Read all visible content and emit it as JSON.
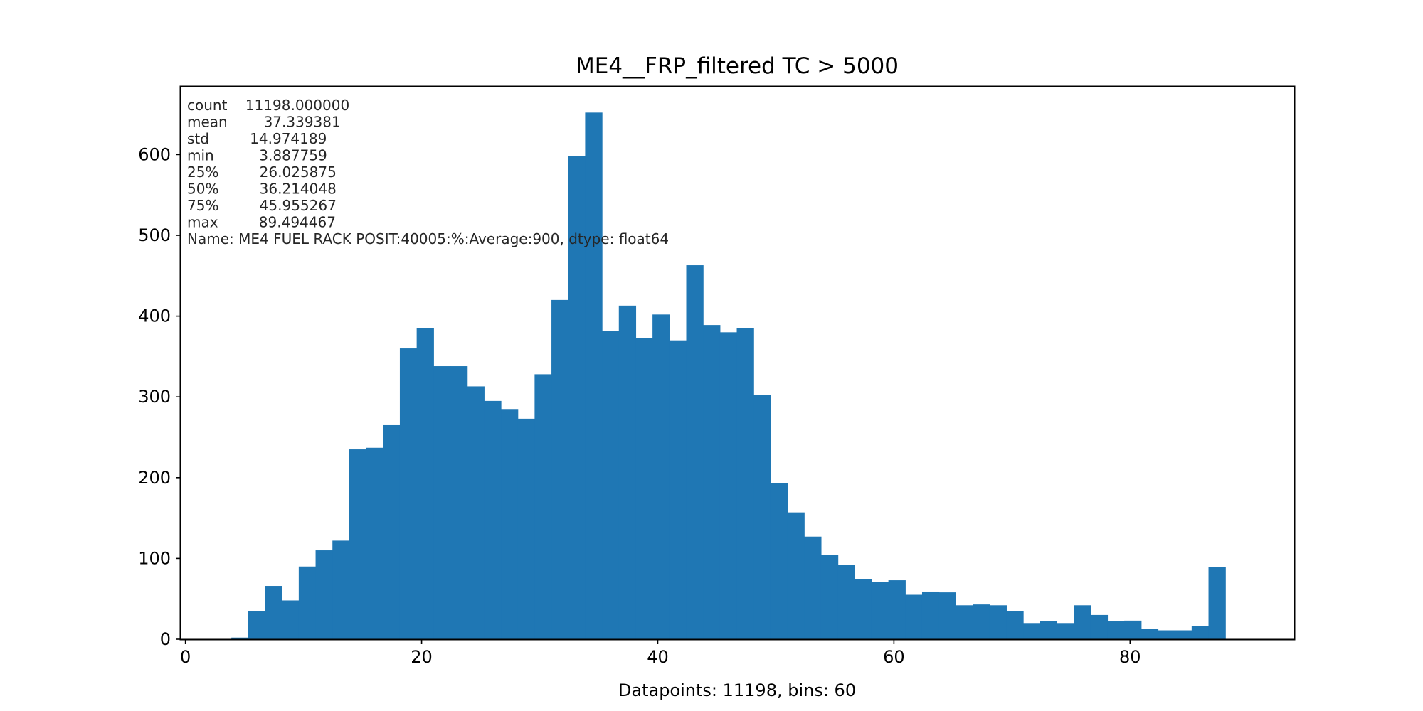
{
  "chart_data": {
    "type": "bar",
    "title": "ME4__FRP_filtered TC > 5000",
    "xlabel": "Datapoints: 11198, bins: 60",
    "ylabel": "",
    "xlim": [
      -0.4,
      93.9
    ],
    "ylim": [
      0,
      684
    ],
    "grid": false,
    "bar_color": "#1f77b4",
    "bin_start": 3.887759,
    "bin_width": 1.426778,
    "xticks": [
      0,
      20,
      40,
      60,
      80
    ],
    "yticks": [
      0,
      100,
      200,
      300,
      400,
      500,
      600
    ],
    "xtick_labels": [
      "0",
      "20",
      "40",
      "60",
      "80"
    ],
    "ytick_labels": [
      "0",
      "100",
      "200",
      "300",
      "400",
      "500",
      "600"
    ],
    "values": [
      0,
      0,
      0,
      0,
      0,
      0,
      0,
      0,
      0,
      0,
      0,
      0,
      0,
      0,
      0,
      0,
      0,
      0,
      0,
      0,
      0,
      0,
      0,
      0,
      0,
      0,
      0,
      0,
      0,
      0,
      0,
      0,
      0,
      0,
      0,
      0,
      0,
      0,
      0,
      0,
      0,
      0,
      0,
      0,
      0,
      0,
      0,
      0,
      0,
      0,
      0,
      0,
      0,
      0,
      0,
      0,
      0,
      0,
      0,
      0
    ],
    "counts": [
      2,
      35,
      66,
      48,
      90,
      110,
      122,
      235,
      237,
      265,
      360,
      385,
      338,
      338,
      313,
      295,
      285,
      273,
      328,
      420,
      598,
      652,
      382,
      413,
      373,
      402,
      370,
      463,
      389,
      380,
      385,
      302,
      193,
      157,
      127,
      104,
      92,
      74,
      71,
      73,
      55,
      59,
      58,
      42,
      43,
      42,
      35,
      20,
      22,
      20,
      42,
      30,
      22,
      23,
      13,
      11,
      11,
      16,
      89,
      0
    ],
    "stats_lines": [
      "count    11198.000000",
      "mean        37.339381",
      "std         14.974189",
      "min          3.887759",
      "25%         26.025875",
      "50%         36.214048",
      "75%         45.955267",
      "max         89.494467",
      "Name: ME4 FUEL RACK POSIT:40005:%:Average:900, dtype: float64"
    ]
  }
}
